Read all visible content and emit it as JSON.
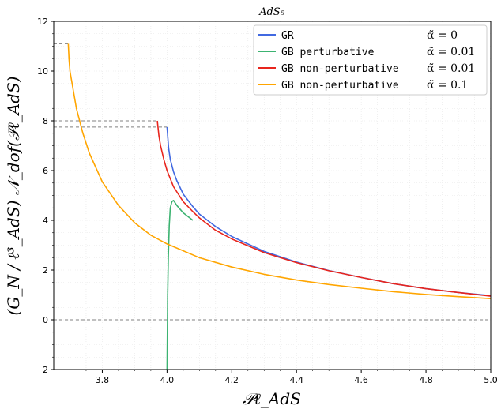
{
  "chart_data": {
    "type": "line",
    "title": "AdS₅",
    "xlabel": "𝒫ℓ_AdS",
    "ylabel": "(G_N / ℓ³_AdS) 𝒩_dof(𝒫ℓ_AdS)",
    "xlim": [
      3.65,
      5.0
    ],
    "ylim": [
      -2,
      12
    ],
    "x_ticks": [
      "3.8",
      "4.0",
      "4.2",
      "4.4",
      "4.6",
      "4.8",
      "5.0"
    ],
    "x_tick_values": [
      3.8,
      4.0,
      4.2,
      4.4,
      4.6,
      4.8,
      5.0
    ],
    "y_ticks": [
      "−2",
      "0",
      "2",
      "4",
      "6",
      "8",
      "10",
      "12"
    ],
    "y_tick_values": [
      -2,
      0,
      2,
      4,
      6,
      8,
      10,
      12
    ],
    "grid": "minor-dotted",
    "legend_position": "top-right",
    "series": [
      {
        "name": "GR",
        "param": "α̃ = 0",
        "color": "#4169e1",
        "points": [
          [
            4.0,
            7.75
          ],
          [
            4.002,
            7.4
          ],
          [
            4.005,
            6.9
          ],
          [
            4.01,
            6.45
          ],
          [
            4.02,
            5.95
          ],
          [
            4.03,
            5.6
          ],
          [
            4.05,
            5.05
          ],
          [
            4.08,
            4.55
          ],
          [
            4.1,
            4.25
          ],
          [
            4.15,
            3.75
          ],
          [
            4.2,
            3.35
          ],
          [
            4.3,
            2.75
          ],
          [
            4.4,
            2.32
          ],
          [
            4.5,
            1.98
          ],
          [
            4.6,
            1.7
          ],
          [
            4.7,
            1.45
          ],
          [
            4.8,
            1.25
          ],
          [
            4.9,
            1.1
          ],
          [
            5.0,
            0.97
          ]
        ]
      },
      {
        "name": "GB perturbative",
        "param": "α̃ = 0.01",
        "color": "#3cb371",
        "points": [
          [
            4.0,
            -2.0
          ],
          [
            4.001,
            -0.5
          ],
          [
            4.002,
            1.0
          ],
          [
            4.004,
            2.5
          ],
          [
            4.007,
            3.8
          ],
          [
            4.01,
            4.5
          ],
          [
            4.015,
            4.75
          ],
          [
            4.02,
            4.8
          ],
          [
            4.03,
            4.6
          ],
          [
            4.04,
            4.45
          ],
          [
            4.05,
            4.3
          ],
          [
            4.08,
            4.0
          ]
        ]
      },
      {
        "name": "GB non-perturbative",
        "param": "α̃ = 0.01",
        "color": "#e8251d",
        "points": [
          [
            3.97,
            8.0
          ],
          [
            3.975,
            7.4
          ],
          [
            3.98,
            7.0
          ],
          [
            3.99,
            6.45
          ],
          [
            4.0,
            6.0
          ],
          [
            4.02,
            5.35
          ],
          [
            4.05,
            4.75
          ],
          [
            4.08,
            4.35
          ],
          [
            4.1,
            4.1
          ],
          [
            4.15,
            3.6
          ],
          [
            4.2,
            3.25
          ],
          [
            4.3,
            2.7
          ],
          [
            4.4,
            2.3
          ],
          [
            4.5,
            1.97
          ],
          [
            4.6,
            1.7
          ],
          [
            4.7,
            1.45
          ],
          [
            4.8,
            1.25
          ],
          [
            4.9,
            1.1
          ],
          [
            5.0,
            0.95
          ]
        ]
      },
      {
        "name": "GB non-perturbative",
        "param": "α̃ = 0.1",
        "color": "#ffa500",
        "points": [
          [
            3.695,
            11.1
          ],
          [
            3.697,
            10.5
          ],
          [
            3.7,
            10.0
          ],
          [
            3.72,
            8.5
          ],
          [
            3.74,
            7.5
          ],
          [
            3.76,
            6.7
          ],
          [
            3.8,
            5.55
          ],
          [
            3.85,
            4.6
          ],
          [
            3.9,
            3.9
          ],
          [
            3.95,
            3.4
          ],
          [
            4.0,
            3.05
          ],
          [
            4.1,
            2.5
          ],
          [
            4.2,
            2.12
          ],
          [
            4.3,
            1.83
          ],
          [
            4.4,
            1.6
          ],
          [
            4.5,
            1.42
          ],
          [
            4.6,
            1.27
          ],
          [
            4.7,
            1.13
          ],
          [
            4.8,
            1.02
          ],
          [
            4.9,
            0.93
          ],
          [
            5.0,
            0.85
          ]
        ]
      }
    ],
    "reference_lines": [
      {
        "type": "horizontal",
        "y": 0,
        "x_from": 3.65,
        "x_to": 5.0,
        "color": "#808080"
      },
      {
        "type": "horizontal",
        "y": 11.1,
        "x_from": 3.65,
        "x_to": 3.695,
        "color": "#808080"
      },
      {
        "type": "horizontal",
        "y": 8.0,
        "x_from": 3.65,
        "x_to": 3.97,
        "color": "#808080"
      },
      {
        "type": "horizontal",
        "y": 7.75,
        "x_from": 3.65,
        "x_to": 4.0,
        "color": "#808080"
      }
    ]
  }
}
